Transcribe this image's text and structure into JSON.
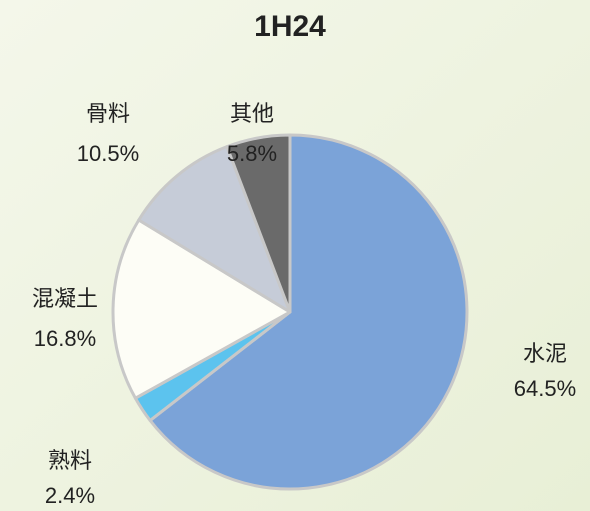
{
  "chart_data": {
    "type": "pie",
    "title": "1H24",
    "categories": [
      "水泥",
      "熟料",
      "混凝土",
      "骨料",
      "其他"
    ],
    "values": [
      64.5,
      2.4,
      16.8,
      10.5,
      5.8
    ],
    "value_labels": [
      "64.5%",
      "2.4%",
      "16.8%",
      "10.5%",
      "5.8%"
    ],
    "colors": [
      "#7ba3d8",
      "#5cc3ee",
      "#fdfdf6",
      "#c6ccd8",
      "#6a6a6a"
    ]
  }
}
